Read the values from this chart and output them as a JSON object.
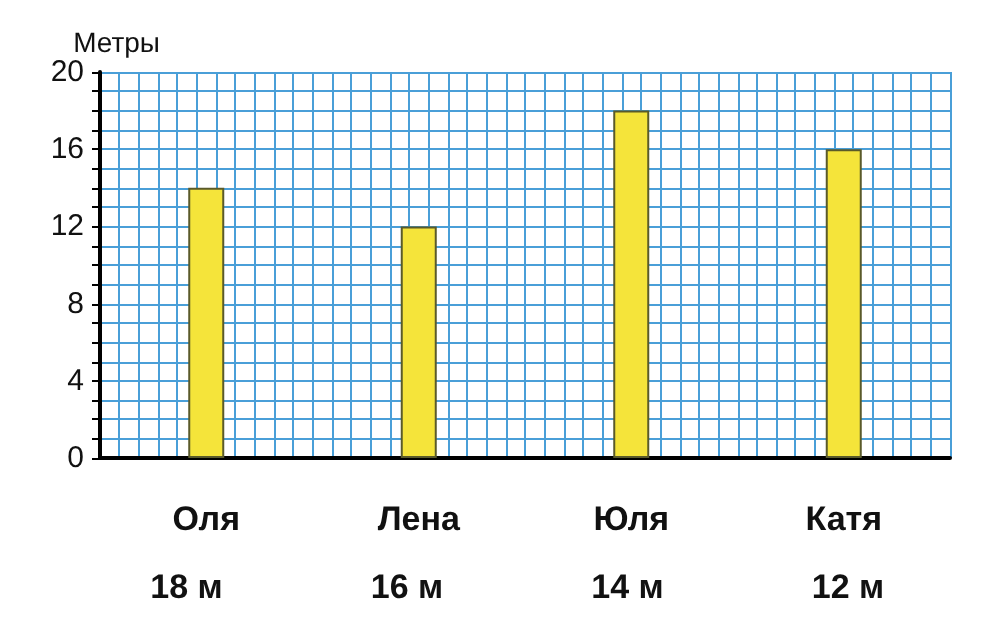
{
  "chart_data": {
    "type": "bar",
    "ylabel": "Метры",
    "categories": [
      "Оля",
      "Лена",
      "Юля",
      "Катя"
    ],
    "values": [
      14,
      12,
      18,
      16
    ],
    "color": "#f5e43a",
    "ylim": [
      0,
      20
    ],
    "yticks": [
      0,
      {
        "value": 1,
        "label": null
      },
      {
        "value": 2,
        "label": null
      },
      {
        "value": 3,
        "label": null
      },
      4,
      {
        "value": 5,
        "label": null
      },
      {
        "value": 6,
        "label": null
      },
      {
        "value": 7,
        "label": null
      },
      8,
      {
        "value": 9,
        "label": null
      },
      {
        "value": 10,
        "label": null
      },
      {
        "value": 11,
        "label": null
      },
      12,
      {
        "value": 13,
        "label": null
      },
      {
        "value": 14,
        "label": null
      },
      {
        "value": 15,
        "label": null
      },
      16,
      {
        "value": 17,
        "label": null
      },
      {
        "value": 18,
        "label": null
      },
      {
        "value": 19,
        "label": null
      },
      20
    ],
    "grid": true,
    "annotations": [
      "18 м",
      "16 м",
      "14 м",
      "12 м"
    ]
  }
}
